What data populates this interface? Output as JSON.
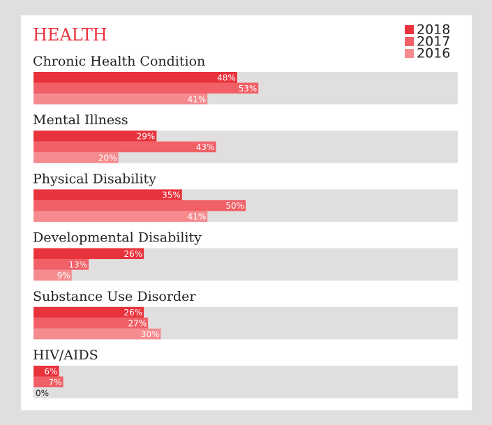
{
  "chart_data": {
    "type": "hbar",
    "title": "HEALTH",
    "categories": [
      "Chronic Health Condition",
      "Mental Illness",
      "Physical Disability",
      "Developmental Disability",
      "Substance Use Disorder",
      "HIV/AIDS"
    ],
    "series": [
      {
        "name": "2018",
        "color": "#e8323c",
        "values": [
          48,
          29,
          35,
          26,
          26,
          6
        ],
        "value_labels": [
          "48%",
          "29%",
          "35%",
          "26%",
          "26%",
          "6%"
        ]
      },
      {
        "name": "2017",
        "color": "#f06066",
        "values": [
          53,
          43,
          50,
          13,
          27,
          7
        ],
        "value_labels": [
          "53%",
          "43%",
          "50%",
          "13%",
          "27%",
          "7%"
        ]
      },
      {
        "name": "2016",
        "color": "#f58b8f",
        "values": [
          41,
          20,
          41,
          9,
          30,
          0
        ],
        "value_labels": [
          "41%",
          "20%",
          "41%",
          "9%",
          "30%",
          "0%"
        ]
      }
    ],
    "xlim": [
      0,
      100
    ],
    "legend": "top-right"
  }
}
